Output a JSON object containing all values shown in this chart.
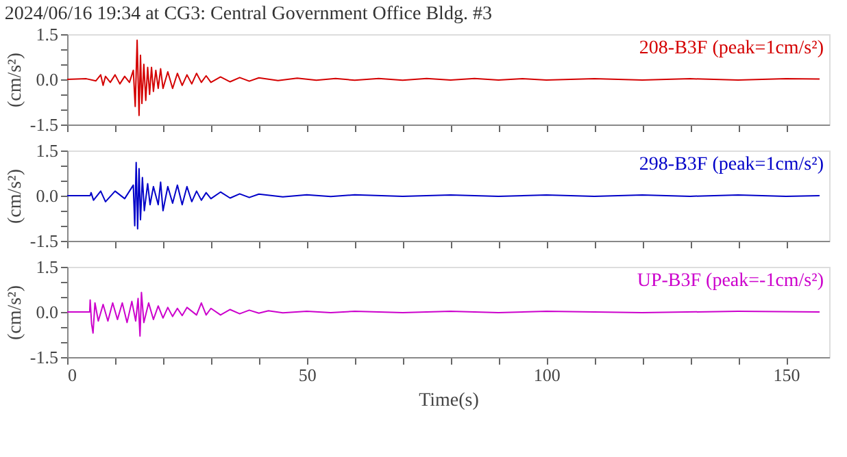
{
  "chart_data": [
    {
      "type": "line",
      "title": "2024/06/16 19:34 at CG3: Central Government Office Bldg. #3",
      "ylabel": "(cm/s²)",
      "xlim": [
        0,
        159
      ],
      "xticks": [
        0,
        {
          "value": 10,
          "label": null
        },
        {
          "value": 20,
          "label": null
        },
        {
          "value": 30,
          "label": null
        },
        {
          "value": 40,
          "label": null
        },
        50,
        {
          "value": 60,
          "label": null
        },
        {
          "value": 70,
          "label": null
        },
        {
          "value": 80,
          "label": null
        },
        {
          "value": 90,
          "label": null
        },
        100,
        {
          "value": 110,
          "label": null
        },
        {
          "value": 120,
          "label": null
        },
        {
          "value": 130,
          "label": null
        },
        {
          "value": 140,
          "label": null
        },
        150
      ],
      "ylim": [
        -1.5,
        1.5
      ],
      "yticks": [
        {
          "value": -1.5,
          "label": "-1.5"
        },
        {
          "value": -1.0,
          "label": null
        },
        {
          "value": -0.5,
          "label": null
        },
        {
          "value": 0,
          "label": "0.0"
        },
        {
          "value": 0.5,
          "label": null
        },
        {
          "value": 1.0,
          "label": null
        },
        {
          "value": 1.5,
          "label": "1.5"
        }
      ],
      "tick_labels": "y",
      "grid": false,
      "marker": "none",
      "line_style": "solid",
      "x": [
        0,
        4,
        6,
        7,
        7.5,
        8,
        9,
        10,
        11,
        12,
        13,
        13.8,
        14.2,
        14.6,
        15,
        15.3,
        15.6,
        16,
        16.4,
        16.8,
        17.2,
        17.6,
        18,
        18.5,
        19,
        19.5,
        20,
        21,
        22,
        23,
        24,
        25,
        26,
        27,
        28,
        29,
        30,
        32,
        34,
        36,
        38,
        40,
        44,
        48,
        52,
        56,
        60,
        65,
        70,
        75,
        80,
        85,
        90,
        95,
        100,
        110,
        120,
        130,
        140,
        150,
        157
      ],
      "series": [
        {
          "name": "208-B3F (peak=1cm/s²)",
          "color": "#d40000",
          "values": [
            0,
            0.02,
            -0.05,
            0.15,
            -0.2,
            0.1,
            -0.1,
            0.15,
            -0.15,
            0.1,
            -0.1,
            0.3,
            -0.9,
            1.3,
            -1.2,
            0.8,
            -0.8,
            0.5,
            -0.7,
            0.4,
            -0.5,
            0.4,
            -0.4,
            0.3,
            -0.3,
            0.35,
            -0.3,
            0.25,
            -0.3,
            0.2,
            -0.2,
            0.15,
            -0.15,
            0.2,
            -0.1,
            0.12,
            -0.1,
            0.08,
            -0.08,
            0.06,
            -0.06,
            0.05,
            -0.04,
            0.04,
            -0.03,
            0.03,
            -0.03,
            0.03,
            -0.03,
            0.03,
            -0.02,
            0.03,
            -0.02,
            0.02,
            -0.02,
            0.02,
            -0.02,
            0.02,
            -0.02,
            0.02,
            0.01
          ]
        }
      ]
    },
    {
      "type": "line",
      "ylabel": "(cm/s²)",
      "xlim": [
        0,
        159
      ],
      "xticks": [
        0,
        {
          "value": 10,
          "label": null
        },
        {
          "value": 20,
          "label": null
        },
        {
          "value": 30,
          "label": null
        },
        {
          "value": 40,
          "label": null
        },
        50,
        {
          "value": 60,
          "label": null
        },
        {
          "value": 70,
          "label": null
        },
        {
          "value": 80,
          "label": null
        },
        {
          "value": 90,
          "label": null
        },
        100,
        {
          "value": 110,
          "label": null
        },
        {
          "value": 120,
          "label": null
        },
        {
          "value": 130,
          "label": null
        },
        {
          "value": 140,
          "label": null
        },
        150
      ],
      "ylim": [
        -1.5,
        1.5
      ],
      "yticks": [
        {
          "value": -1.5,
          "label": "-1.5"
        },
        {
          "value": -1.0,
          "label": null
        },
        {
          "value": -0.5,
          "label": null
        },
        {
          "value": 0,
          "label": "0.0"
        },
        {
          "value": 0.5,
          "label": null
        },
        {
          "value": 1.0,
          "label": null
        },
        {
          "value": 1.5,
          "label": "1.5"
        }
      ],
      "tick_labels": "y",
      "grid": false,
      "marker": "none",
      "line_style": "solid",
      "x": [
        0,
        4.8,
        5,
        5.5,
        7,
        8,
        10,
        12,
        13.8,
        14.1,
        14.4,
        14.7,
        15,
        15.3,
        15.7,
        16.1,
        16.8,
        17.3,
        18,
        19,
        19.5,
        20,
        21,
        22,
        23,
        24,
        25,
        26,
        27,
        28,
        29,
        30,
        32,
        34,
        36,
        38,
        40,
        45,
        50,
        55,
        60,
        70,
        80,
        90,
        100,
        110,
        120,
        130,
        140,
        150,
        157
      ],
      "series": [
        {
          "name": "298-B3F (peak=1cm/s²)",
          "color": "#0000c8",
          "values": [
            0,
            0,
            0.1,
            -0.15,
            0.15,
            -0.2,
            0.15,
            -0.1,
            0.35,
            -1.0,
            1.1,
            -1.1,
            0.9,
            -0.8,
            0.6,
            -0.5,
            0.4,
            -0.3,
            0.3,
            -0.3,
            0.45,
            -0.5,
            0.3,
            -0.25,
            0.35,
            -0.3,
            0.3,
            -0.2,
            0.15,
            -0.15,
            0.1,
            -0.1,
            0.12,
            -0.08,
            0.06,
            -0.06,
            0.05,
            -0.04,
            0.03,
            -0.03,
            0.03,
            -0.02,
            0.02,
            -0.02,
            0.02,
            -0.02,
            0.02,
            -0.02,
            0.02,
            -0.02,
            0
          ]
        }
      ]
    },
    {
      "type": "line",
      "ylabel": "(cm/s²)",
      "xlabel": "Time(s)",
      "xlim": [
        0,
        159
      ],
      "xticks": [
        0,
        {
          "value": 10,
          "label": null
        },
        {
          "value": 20,
          "label": null
        },
        {
          "value": 30,
          "label": null
        },
        {
          "value": 40,
          "label": null
        },
        50,
        {
          "value": 60,
          "label": null
        },
        {
          "value": 70,
          "label": null
        },
        {
          "value": 80,
          "label": null
        },
        {
          "value": 90,
          "label": null
        },
        100,
        {
          "value": 110,
          "label": null
        },
        {
          "value": 120,
          "label": null
        },
        {
          "value": 130,
          "label": null
        },
        {
          "value": 140,
          "label": null
        },
        150
      ],
      "ylim": [
        -1.5,
        1.5
      ],
      "yticks": [
        {
          "value": -1.5,
          "label": "-1.5"
        },
        {
          "value": -1.0,
          "label": null
        },
        {
          "value": -0.5,
          "label": null
        },
        {
          "value": 0,
          "label": "0.0"
        },
        {
          "value": 0.5,
          "label": null
        },
        {
          "value": 1.0,
          "label": null
        },
        {
          "value": 1.5,
          "label": "1.5"
        }
      ],
      "grid": false,
      "marker": "none",
      "line_style": "solid",
      "x": [
        0,
        4.7,
        4.8,
        5.1,
        5.4,
        5.8,
        6.5,
        7.5,
        8.5,
        9.5,
        10.5,
        11.5,
        12.5,
        13.5,
        14.3,
        14.8,
        15.2,
        15.5,
        16,
        17,
        18,
        19,
        20,
        21,
        22,
        23,
        24,
        25,
        27,
        28,
        29,
        30,
        32,
        34,
        36,
        38,
        40,
        42,
        45,
        50,
        55,
        60,
        70,
        80,
        90,
        100,
        120,
        140,
        157
      ],
      "series": [
        {
          "name": "UP-B3F (peak=-1cm/s²)",
          "color": "#cc00cc",
          "values": [
            0,
            0,
            0.4,
            -0.4,
            -0.7,
            0.3,
            -0.3,
            0.25,
            -0.3,
            0.3,
            -0.25,
            0.3,
            -0.35,
            0.35,
            -0.3,
            0.45,
            -0.8,
            0.65,
            -0.35,
            0.3,
            -0.25,
            0.2,
            -0.2,
            0.15,
            -0.15,
            0.12,
            -0.12,
            0.15,
            -0.1,
            0.3,
            -0.1,
            0.12,
            -0.1,
            0.08,
            -0.06,
            0.06,
            -0.04,
            0.04,
            -0.03,
            0.02,
            -0.02,
            0.02,
            -0.02,
            0.02,
            -0.02,
            0.02,
            -0.02,
            0.02,
            0
          ]
        }
      ]
    }
  ]
}
